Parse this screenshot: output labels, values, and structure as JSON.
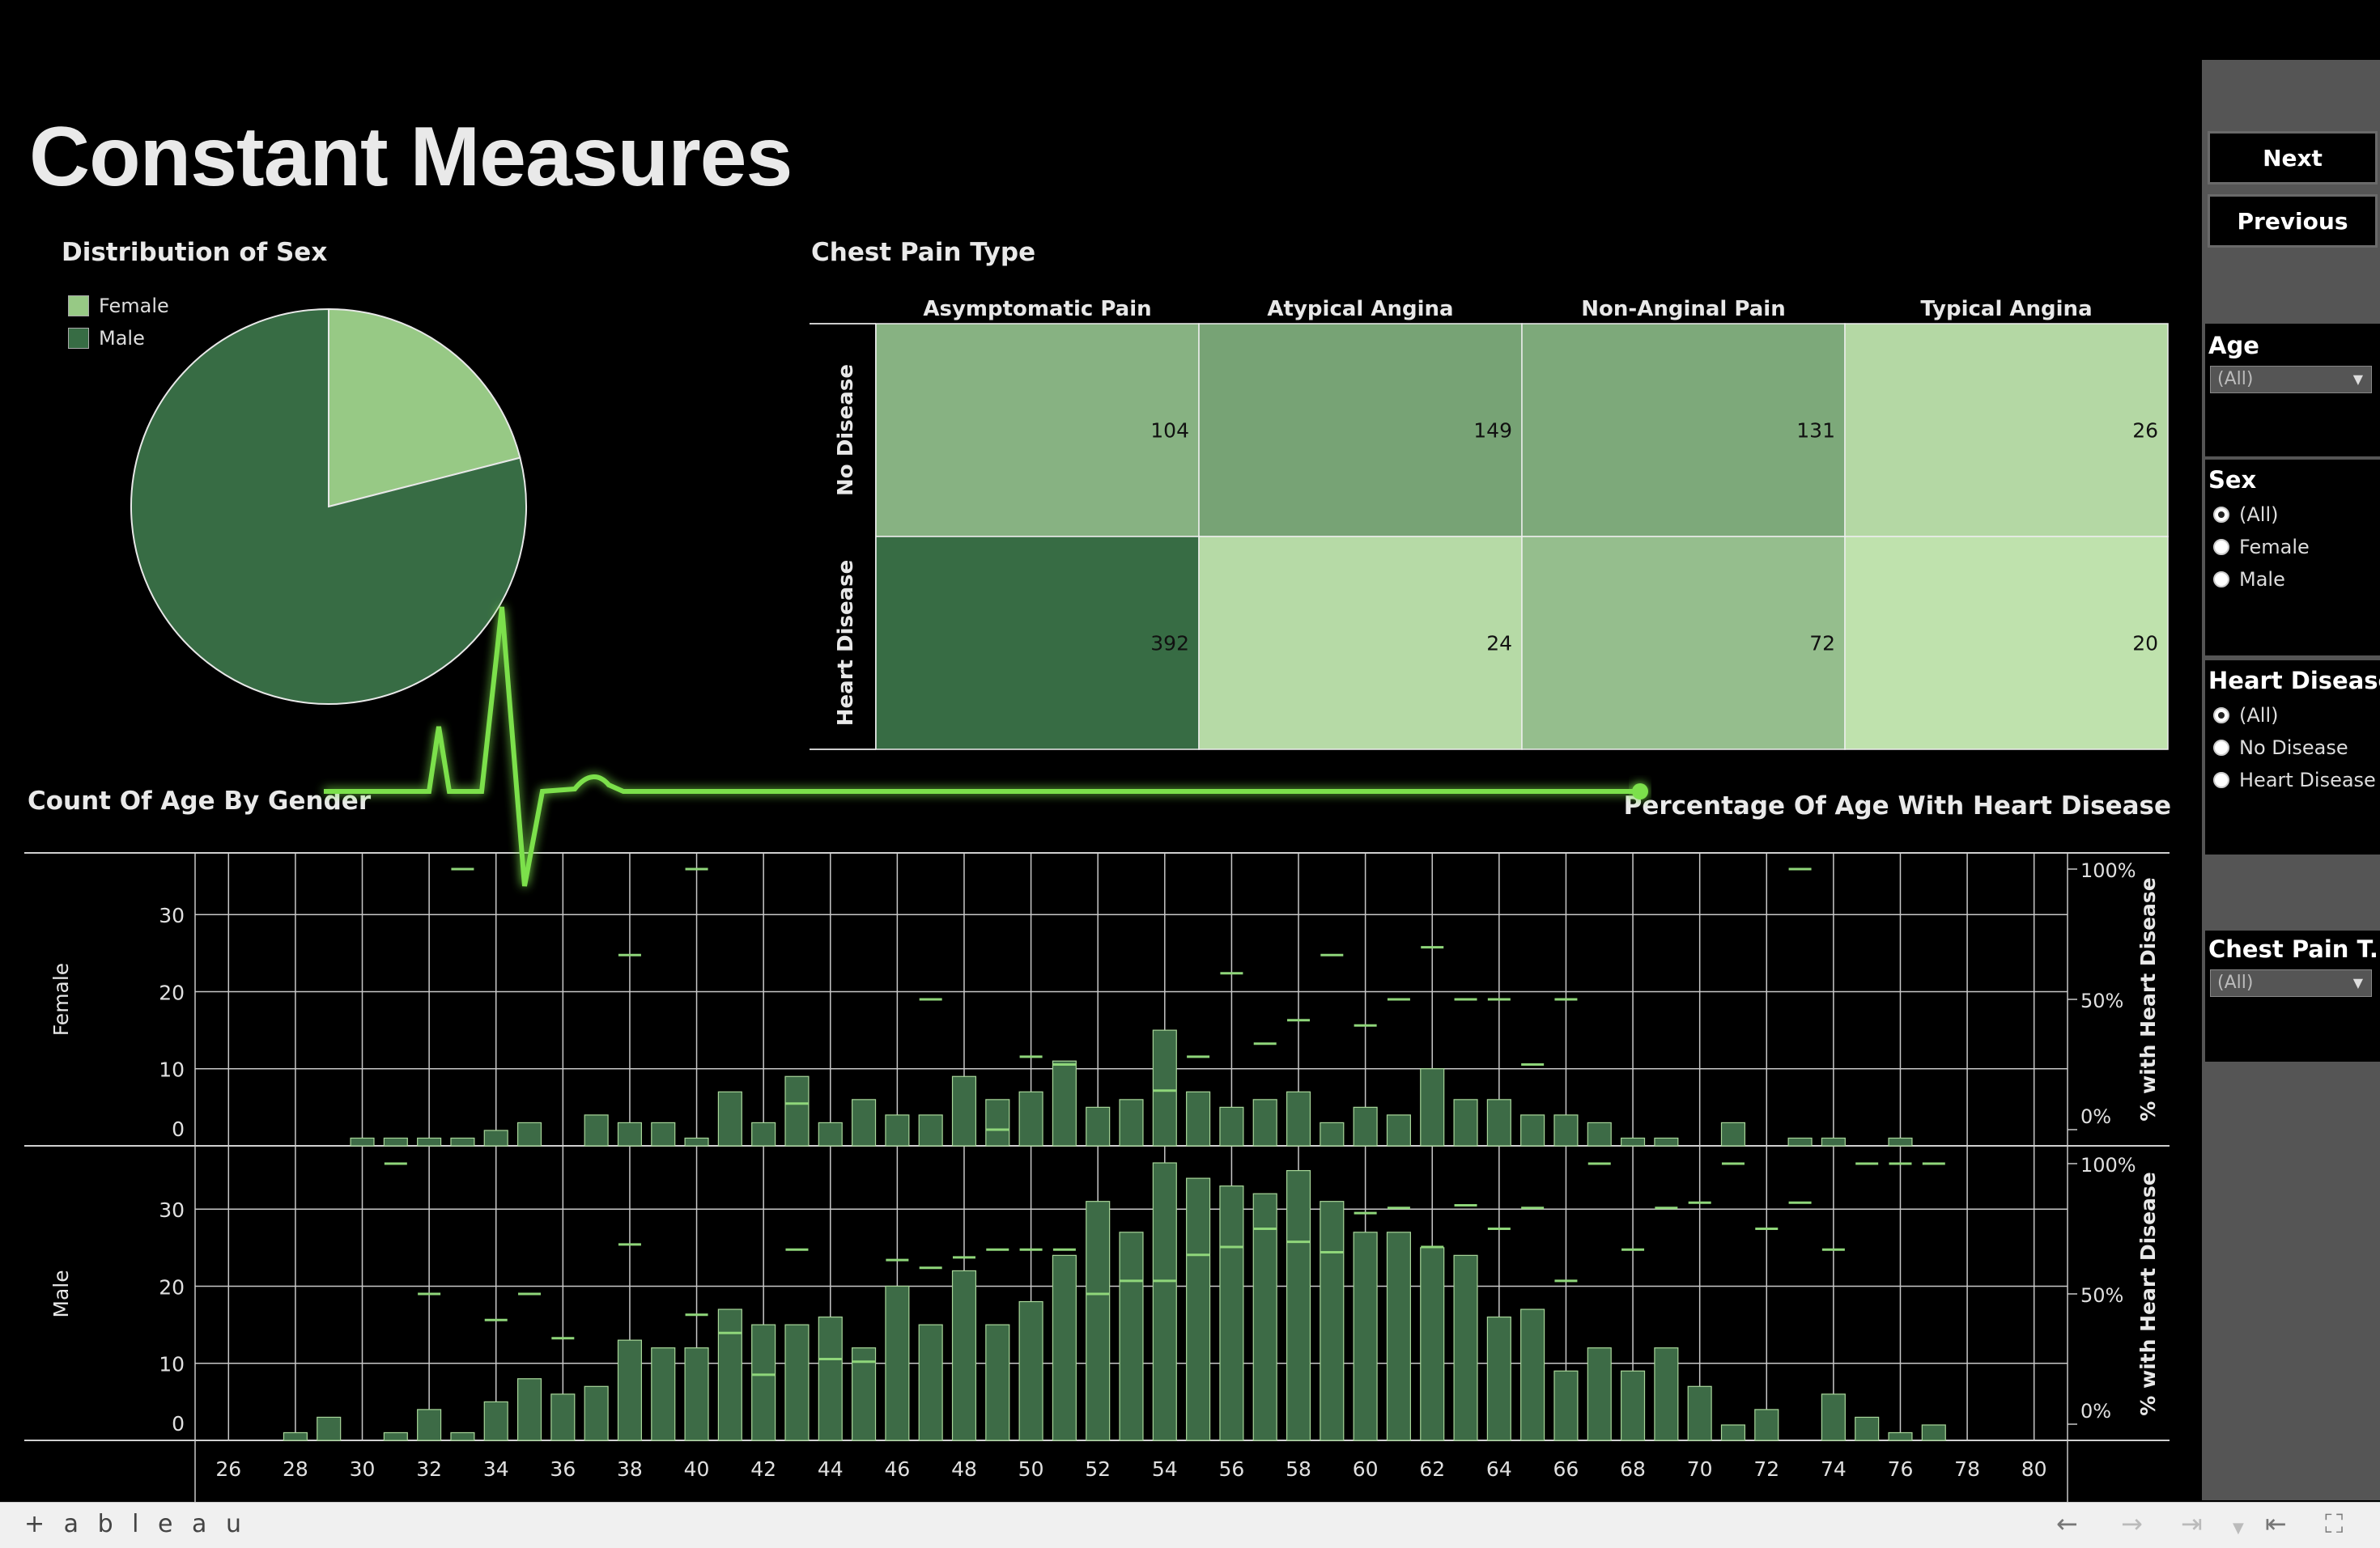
{
  "dashboard": {
    "title": "Constant Measures"
  },
  "colors": {
    "female": "#97c985",
    "male": "#376c44",
    "bar": "#3d6b46",
    "glow": "#7be04b",
    "heat_scale": [
      "#bfe2ad",
      "#376c44"
    ]
  },
  "sex_pie": {
    "title": "Distribution of Sex",
    "legend": [
      {
        "label": "Female",
        "color": "#97c985"
      },
      {
        "label": "Male",
        "color": "#376c44"
      }
    ],
    "values": {
      "Female": 193,
      "Male": 725
    }
  },
  "chest_pain": {
    "title": "Chest Pain Type",
    "columns": [
      "Asymptomatic Pain",
      "Atypical Angina",
      "Non-Anginal Pain",
      "Typical Angina"
    ],
    "rows": [
      "No Disease",
      "Heart Disease"
    ],
    "values": [
      [
        104,
        149,
        131,
        26
      ],
      [
        392,
        24,
        72,
        20
      ]
    ]
  },
  "age_chart": {
    "left_title": "Count Of Age By Gender",
    "right_title": "Percentage Of Age With Heart Disease",
    "panes": [
      "Female",
      "Male"
    ],
    "right_axis_label": "% with Heart Disease"
  },
  "right_panel": {
    "next_label": "Next",
    "previous_label": "Previous",
    "filters": {
      "age": {
        "title": "Age",
        "value": "(All)"
      },
      "sex": {
        "title": "Sex",
        "options": [
          "(All)",
          "Female",
          "Male"
        ],
        "selected": "(All)"
      },
      "heart_disease": {
        "title": "Heart Disease",
        "options": [
          "(All)",
          "No Disease",
          "Heart Disease"
        ],
        "selected": "(All)"
      },
      "chest_pain": {
        "title": "Chest Pain T...",
        "value": "(All)"
      }
    }
  },
  "toolbar": {
    "brand": "+ a b l e a u"
  },
  "chart_data": [
    {
      "type": "pie",
      "title": "Distribution of Sex",
      "categories": [
        "Female",
        "Male"
      ],
      "values": [
        193,
        725
      ]
    },
    {
      "type": "heatmap",
      "title": "Chest Pain Type",
      "x": [
        "Asymptomatic Pain",
        "Atypical Angina",
        "Non-Anginal Pain",
        "Typical Angina"
      ],
      "y": [
        "No Disease",
        "Heart Disease"
      ],
      "values": [
        [
          104,
          149,
          131,
          26
        ],
        [
          392,
          24,
          72,
          20
        ]
      ]
    },
    {
      "type": "bar",
      "title": "Count Of Age By Gender",
      "x_ticks": [
        26,
        28,
        30,
        32,
        34,
        36,
        38,
        40,
        42,
        44,
        46,
        48,
        50,
        52,
        54,
        56,
        58,
        60,
        62,
        64,
        66,
        68,
        70,
        72,
        74,
        76,
        78,
        80
      ],
      "ylim": [
        0,
        38
      ],
      "y_ticks": [
        0,
        10,
        20,
        30
      ],
      "grid": true,
      "series": [
        {
          "name": "Female",
          "x": [
            30,
            31,
            32,
            33,
            34,
            35,
            37,
            38,
            39,
            40,
            41,
            42,
            43,
            44,
            45,
            46,
            47,
            48,
            49,
            50,
            51,
            52,
            53,
            54,
            55,
            56,
            57,
            58,
            59,
            60,
            61,
            62,
            63,
            64,
            65,
            66,
            67,
            68,
            69,
            71,
            73,
            74,
            76
          ],
          "values": [
            1,
            1,
            1,
            1,
            2,
            3,
            4,
            3,
            3,
            1,
            7,
            3,
            9,
            3,
            6,
            4,
            4,
            9,
            6,
            7,
            11,
            5,
            6,
            15,
            7,
            5,
            6,
            7,
            3,
            5,
            4,
            10,
            6,
            6,
            4,
            4,
            3,
            1,
            1,
            3,
            1,
            1,
            1
          ]
        },
        {
          "name": "Male",
          "x": [
            28,
            29,
            31,
            32,
            33,
            34,
            35,
            36,
            37,
            38,
            39,
            40,
            41,
            42,
            43,
            44,
            45,
            46,
            47,
            48,
            49,
            50,
            51,
            52,
            53,
            54,
            55,
            56,
            57,
            58,
            59,
            60,
            61,
            62,
            63,
            64,
            65,
            66,
            67,
            68,
            69,
            70,
            71,
            72,
            74,
            75,
            76,
            77
          ],
          "values": [
            1,
            3,
            1,
            4,
            1,
            5,
            8,
            6,
            7,
            13,
            12,
            12,
            17,
            15,
            15,
            16,
            12,
            20,
            15,
            22,
            15,
            18,
            24,
            31,
            27,
            36,
            34,
            33,
            32,
            35,
            31,
            27,
            27,
            25,
            24,
            16,
            17,
            9,
            12,
            9,
            12,
            7,
            2,
            4,
            6,
            3,
            1,
            2
          ]
        }
      ]
    },
    {
      "type": "scatter",
      "title": "Percentage Of Age With Heart Disease",
      "y_label": "% with Heart Disease",
      "y_ticks": [
        "0%",
        "50%",
        "100%"
      ],
      "ylim": [
        0,
        100
      ],
      "series": [
        {
          "name": "Female",
          "x": [
            33,
            40,
            38,
            47,
            49,
            43,
            50,
            51,
            54,
            55,
            56,
            57,
            58,
            59,
            60,
            61,
            62,
            63,
            64,
            65,
            66,
            73
          ],
          "values": [
            100,
            100,
            67,
            50,
            0,
            10,
            28,
            25,
            15,
            28,
            60,
            33,
            42,
            67,
            40,
            50,
            70,
            50,
            50,
            25,
            50,
            100
          ]
        },
        {
          "name": "Male",
          "x": [
            31,
            32,
            34,
            35,
            36,
            38,
            40,
            41,
            42,
            43,
            44,
            45,
            46,
            47,
            48,
            49,
            50,
            51,
            52,
            53,
            54,
            55,
            56,
            57,
            58,
            59,
            60,
            61,
            62,
            63,
            64,
            65,
            66,
            67,
            68,
            69,
            70,
            71,
            72,
            73,
            74,
            75,
            76,
            77
          ],
          "values": [
            100,
            50,
            40,
            50,
            33,
            69,
            42,
            35,
            19,
            67,
            25,
            24,
            63,
            60,
            64,
            67,
            67,
            67,
            50,
            55,
            55,
            65,
            68,
            75,
            70,
            66,
            81,
            83,
            68,
            84,
            75,
            83,
            55,
            100,
            67,
            83,
            85,
            100,
            75,
            85,
            67,
            100,
            100,
            100
          ]
        }
      ]
    }
  ]
}
